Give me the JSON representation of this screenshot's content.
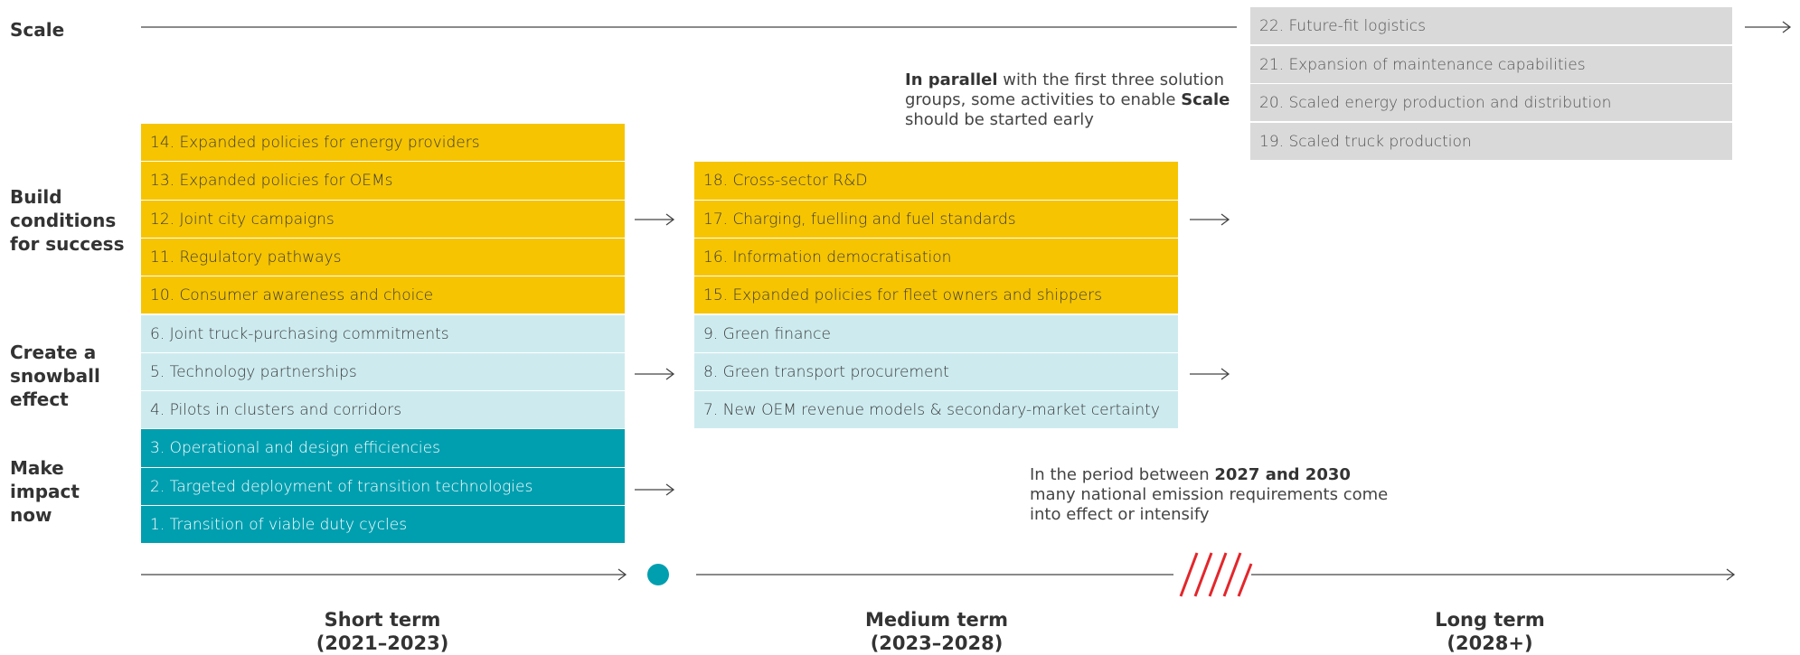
{
  "row_labels": [
    [
      "Scale"
    ],
    [
      "Build",
      "conditions",
      "for success"
    ],
    [
      "Create a",
      "snowball",
      "effect"
    ],
    [
      "Make",
      "impact",
      "now"
    ]
  ],
  "scale_items": [
    "22. Future-fit logistics",
    "21. Expansion of maintenance capabilities",
    "20. Scaled energy production and distribution",
    "19. Scaled truck production"
  ],
  "short_term": {
    "build": [
      "14. Expanded policies for energy providers",
      "13. Expanded policies for OEMs",
      "12. Joint city campaigns",
      "11. Regulatory pathways",
      "10. Consumer awareness and choice"
    ],
    "snowball": [
      "6. Joint truck-purchasing commitments",
      "5. Technology partnerships",
      "4. Pilots in clusters and corridors"
    ],
    "impact": [
      "3. Operational and design efficiencies",
      "2. Targeted deployment of transition technologies",
      "1. Transition of viable duty cycles"
    ]
  },
  "medium_term": {
    "build": [
      "18. Cross-sector R&D",
      "17. Charging, fuelling and fuel standards",
      "16. Information democratisation",
      "15. Expanded policies for fleet owners and shippers"
    ],
    "snowball": [
      "9. Green finance",
      "8. Green transport procurement",
      "7. New OEM revenue models & secondary-market certainty"
    ]
  },
  "notes": {
    "parallel": [
      [
        {
          "text": "In parallel",
          "bold": true
        },
        {
          "text": " with the first three solution",
          "bold": false
        }
      ],
      [
        {
          "text": "groups, some activities to enable ",
          "bold": false
        },
        {
          "text": "Scale",
          "bold": true
        }
      ],
      [
        {
          "text": "should be started early",
          "bold": false
        }
      ]
    ],
    "period": [
      [
        {
          "text": "In the period between ",
          "bold": false
        },
        {
          "text": "2027 and 2030",
          "bold": true
        }
      ],
      [
        {
          "text": "many national emission requirements come",
          "bold": false
        }
      ],
      [
        {
          "text": "into effect or intensify",
          "bold": false
        }
      ]
    ]
  },
  "phases": [
    {
      "name": "Short term",
      "years": "(2021–2023)"
    },
    {
      "name": "Medium term",
      "years": "(2023–2028)"
    },
    {
      "name": "Long term",
      "years": "(2028+)"
    }
  ]
}
